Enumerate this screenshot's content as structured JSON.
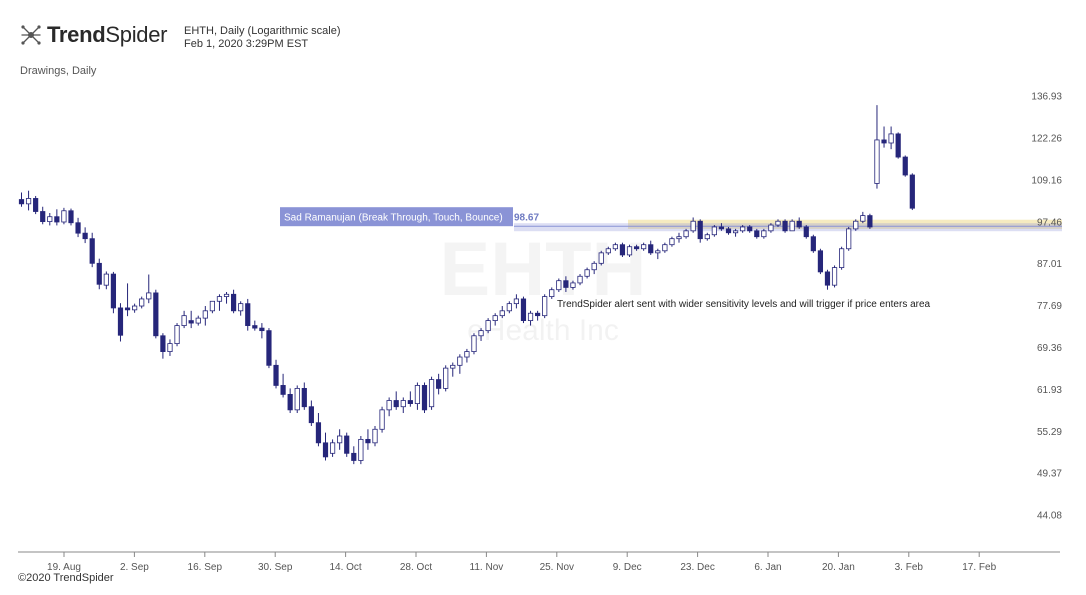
{
  "brand": {
    "logo_text_bold": "Trend",
    "logo_text_regular": "Spider",
    "copyright": "©2020 TrendSpider"
  },
  "header": {
    "symbol_line": "EHTH, Daily (Logarithmic scale)",
    "date_line": "Feb 1, 2020 3:29PM EST",
    "subtitle": "Drawings, Daily"
  },
  "colors": {
    "up_candle_fill": "#ffffff",
    "down_candle_fill": "#26267a",
    "candle_stroke": "#26267a",
    "alert_band": "#8a93d6",
    "zone": "#f5e7b5",
    "axis": "#888888"
  },
  "chart_data": {
    "type": "candlestick",
    "scale": "log",
    "ylim": [
      42,
      143
    ],
    "y_ticks": [
      44.08,
      49.37,
      55.29,
      61.93,
      69.36,
      77.69,
      87.01,
      97.46,
      109.16,
      122.26,
      136.93
    ],
    "x_ticks": [
      "19. Aug",
      "2. Sep",
      "16. Sep",
      "30. Sep",
      "14. Oct",
      "28. Oct",
      "11. Nov",
      "25. Nov",
      "9. Dec",
      "23. Dec",
      "6. Jan",
      "20. Jan",
      "3. Feb",
      "17. Feb"
    ],
    "watermark": {
      "symbol": "EHTH",
      "name": "eHealth Inc"
    },
    "alert": {
      "label": "Sad Ramanujan (Break Through, Touch, Bounce)",
      "value": "98.67",
      "level": 98.67
    },
    "zone": {
      "low": 95.6,
      "high": 98.0
    },
    "annotation": "TrendSpider alert sent with wider sensitivity levels and will trigger if price enters area",
    "candles": [
      [
        103.5,
        105.5,
        101.5,
        102.3
      ],
      [
        102.3,
        106,
        100.5,
        103.8
      ],
      [
        103.8,
        104.5,
        99.5,
        100.2
      ],
      [
        100.2,
        101.5,
        96.8,
        97.5
      ],
      [
        97.5,
        99.8,
        96.5,
        98.8
      ],
      [
        98.8,
        100.8,
        96.5,
        97.4
      ],
      [
        97.4,
        101.2,
        96.8,
        100.4
      ],
      [
        100.4,
        101,
        96.5,
        97.2
      ],
      [
        97.2,
        98.5,
        93.5,
        94.5
      ],
      [
        94.5,
        96,
        92,
        93.1
      ],
      [
        93.1,
        94.6,
        86.2,
        87.1
      ],
      [
        87.1,
        88.2,
        81.2,
        82.3
      ],
      [
        82.1,
        85.2,
        81.2,
        84.6
      ],
      [
        84.6,
        85.1,
        76.1,
        77.2
      ],
      [
        77.2,
        78.2,
        70.5,
        71.7
      ],
      [
        77.2,
        82.5,
        75.5,
        76.8
      ],
      [
        76.8,
        78.1,
        76.2,
        77.6
      ],
      [
        77.6,
        79.6,
        77.1,
        79.1
      ],
      [
        79.1,
        84.5,
        78.2,
        80.4
      ],
      [
        80.4,
        81.1,
        71.1,
        71.6
      ],
      [
        71.6,
        72.1,
        67.3,
        68.6
      ],
      [
        68.6,
        70.9,
        67.8,
        70.1
      ],
      [
        70.1,
        74.1,
        69.6,
        73.6
      ],
      [
        73.6,
        76.6,
        73.1,
        75.6
      ],
      [
        74.6,
        76.6,
        73.1,
        74.1
      ],
      [
        74.1,
        75.6,
        73.6,
        75.1
      ],
      [
        75.1,
        77.6,
        73.6,
        76.6
      ],
      [
        76.6,
        78.6,
        76.1,
        78.6
      ],
      [
        78.6,
        80.1,
        76.6,
        79.6
      ],
      [
        79.6,
        80.6,
        78.1,
        80.1
      ],
      [
        80.1,
        81.1,
        76.1,
        76.6
      ],
      [
        76.6,
        78.6,
        75.6,
        78.1
      ],
      [
        78.1,
        79.1,
        72.6,
        73.6
      ],
      [
        73.6,
        74.6,
        72.6,
        73.1
      ],
      [
        73.1,
        74.1,
        71.1,
        72.6
      ],
      [
        72.6,
        73.1,
        65.6,
        66.1
      ],
      [
        66.1,
        67.1,
        62.1,
        62.6
      ],
      [
        62.6,
        64.6,
        60.6,
        61.1
      ],
      [
        61.1,
        62.1,
        58.1,
        58.6
      ],
      [
        58.6,
        62.6,
        58.1,
        62.1
      ],
      [
        62.1,
        63.1,
        58.6,
        59.1
      ],
      [
        59.1,
        60.1,
        56.1,
        56.6
      ],
      [
        56.6,
        58.1,
        53.1,
        53.6
      ],
      [
        53.6,
        55.1,
        51.1,
        51.6
      ],
      [
        52.1,
        54.1,
        51.6,
        53.6
      ],
      [
        53.6,
        55.6,
        52.6,
        54.6
      ],
      [
        54.6,
        55.1,
        51.6,
        52.1
      ],
      [
        52.1,
        53.1,
        50.6,
        51.1
      ],
      [
        51.1,
        54.6,
        50.6,
        54.1
      ],
      [
        54.1,
        55.6,
        52.6,
        53.6
      ],
      [
        53.6,
        56.1,
        53.1,
        55.6
      ],
      [
        55.6,
        59.1,
        55.1,
        58.6
      ],
      [
        58.6,
        60.6,
        57.6,
        60.1
      ],
      [
        60.1,
        61.6,
        58.6,
        59.1
      ],
      [
        59.1,
        60.6,
        58.1,
        60.1
      ],
      [
        60.1,
        61.6,
        59.1,
        59.6
      ],
      [
        59.6,
        63.1,
        58.6,
        62.6
      ],
      [
        62.6,
        63.1,
        58.1,
        58.6
      ],
      [
        59.1,
        64.1,
        58.6,
        63.6
      ],
      [
        63.6,
        64.6,
        61.1,
        62.1
      ],
      [
        62.1,
        66.1,
        61.6,
        65.6
      ],
      [
        65.6,
        66.6,
        64.1,
        66.1
      ],
      [
        66.1,
        68.1,
        64.6,
        67.6
      ],
      [
        67.6,
        69.1,
        66.6,
        68.6
      ],
      [
        68.6,
        72.1,
        68.1,
        71.6
      ],
      [
        71.6,
        73.1,
        70.6,
        72.6
      ],
      [
        72.6,
        75.1,
        72.1,
        74.6
      ],
      [
        74.6,
        76.1,
        73.6,
        75.6
      ],
      [
        75.6,
        77.6,
        75.1,
        76.6
      ],
      [
        76.6,
        78.6,
        76.1,
        78.1
      ],
      [
        78.1,
        80.1,
        77.1,
        79.1
      ],
      [
        79.1,
        79.6,
        74.1,
        74.6
      ],
      [
        74.6,
        76.6,
        73.6,
        76.1
      ],
      [
        76.1,
        76.6,
        74.6,
        75.6
      ],
      [
        75.6,
        80.1,
        75.1,
        79.6
      ],
      [
        79.6,
        81.6,
        79.1,
        81.1
      ],
      [
        81.1,
        83.6,
        80.6,
        83.1
      ],
      [
        83.1,
        84.1,
        80.6,
        81.6
      ],
      [
        81.6,
        83.1,
        81.1,
        82.6
      ],
      [
        82.6,
        84.6,
        82.1,
        84.1
      ],
      [
        84.1,
        86.1,
        83.6,
        85.6
      ],
      [
        85.6,
        87.6,
        84.6,
        87.1
      ],
      [
        87.1,
        90.1,
        86.6,
        89.6
      ],
      [
        89.6,
        91.1,
        89.1,
        90.6
      ],
      [
        90.6,
        92.1,
        90.1,
        91.6
      ],
      [
        91.6,
        92.1,
        88.6,
        89.1
      ],
      [
        89.1,
        91.6,
        88.6,
        91.1
      ],
      [
        91.1,
        91.6,
        90.1,
        90.6
      ],
      [
        90.6,
        92.1,
        90.1,
        91.6
      ],
      [
        91.6,
        92.6,
        89.1,
        89.6
      ],
      [
        89.6,
        90.6,
        88.1,
        90.1
      ],
      [
        90.1,
        92.1,
        89.6,
        91.6
      ],
      [
        91.6,
        93.6,
        91.1,
        93.1
      ],
      [
        93.1,
        94.6,
        92.1,
        93.6
      ],
      [
        93.6,
        95.6,
        93.1,
        95.1
      ],
      [
        95.1,
        98.6,
        94.6,
        97.6
      ],
      [
        97.6,
        98.1,
        92.1,
        93.1
      ],
      [
        93.1,
        94.6,
        92.6,
        94.1
      ],
      [
        94.1,
        96.6,
        93.6,
        96.1
      ],
      [
        96.1,
        97.1,
        95.1,
        95.6
      ],
      [
        95.6,
        96.1,
        94.1,
        94.6
      ],
      [
        94.6,
        95.6,
        93.6,
        95.1
      ],
      [
        95.1,
        96.6,
        94.6,
        96.1
      ],
      [
        96.1,
        96.6,
        94.6,
        95.1
      ],
      [
        95.1,
        95.6,
        93.1,
        93.6
      ],
      [
        93.6,
        95.6,
        93.1,
        95.1
      ],
      [
        95.1,
        97.1,
        94.6,
        96.6
      ],
      [
        96.6,
        98.1,
        96.1,
        97.6
      ],
      [
        97.6,
        98.1,
        94.6,
        95.1
      ],
      [
        95.1,
        98.1,
        95.1,
        97.6
      ],
      [
        97.6,
        98.6,
        95.6,
        96.1
      ],
      [
        96.1,
        96.6,
        93.1,
        93.6
      ],
      [
        93.6,
        94.1,
        89.6,
        90.1
      ],
      [
        90.1,
        90.6,
        84.6,
        85.1
      ],
      [
        85.1,
        85.6,
        81.1,
        82.1
      ],
      [
        82.1,
        86.6,
        81.6,
        86.1
      ],
      [
        86.1,
        91.1,
        85.6,
        90.6
      ],
      [
        90.6,
        96.1,
        90.1,
        95.6
      ],
      [
        95.6,
        98.1,
        95.1,
        97.6
      ],
      [
        97.6,
        100.1,
        97.1,
        99.1
      ],
      [
        99.1,
        99.6,
        95.6,
        96.1
      ],
      [
        108.1,
        133.6,
        106.6,
        121.6
      ],
      [
        121.6,
        126.1,
        119.1,
        120.6
      ],
      [
        120.6,
        126.1,
        118.6,
        123.6
      ],
      [
        123.6,
        124.1,
        115.6,
        116.1
      ],
      [
        116.1,
        116.6,
        110.1,
        110.6
      ],
      [
        110.6,
        111.1,
        100.6,
        101.1
      ]
    ]
  }
}
